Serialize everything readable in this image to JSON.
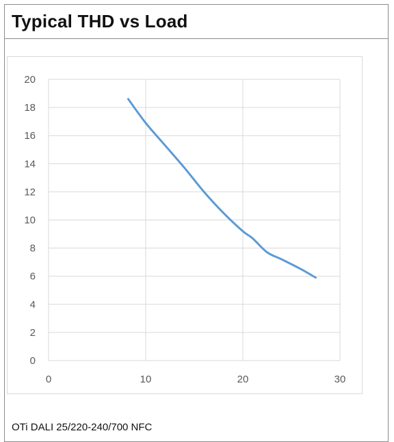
{
  "page": {
    "title": "Typical THD vs Load",
    "caption": "OTi DALI 25/220-240/700 NFC"
  },
  "chart_data": {
    "type": "line",
    "title": "",
    "xlabel": "",
    "ylabel": "",
    "xlim": [
      0,
      30
    ],
    "ylim": [
      0,
      20
    ],
    "x_ticks": [
      0,
      10,
      20,
      30
    ],
    "y_ticks": [
      0,
      2,
      4,
      6,
      8,
      10,
      12,
      14,
      16,
      18,
      20
    ],
    "grid": true,
    "series": [
      {
        "color": "#5b9bd5",
        "x": [
          8.2,
          10,
          12,
          14,
          16,
          18,
          20,
          21,
          22.5,
          24,
          26,
          27.5
        ],
        "y": [
          18.6,
          16.9,
          15.3,
          13.7,
          12.0,
          10.5,
          9.2,
          8.7,
          7.7,
          7.2,
          6.5,
          5.9
        ]
      }
    ]
  }
}
